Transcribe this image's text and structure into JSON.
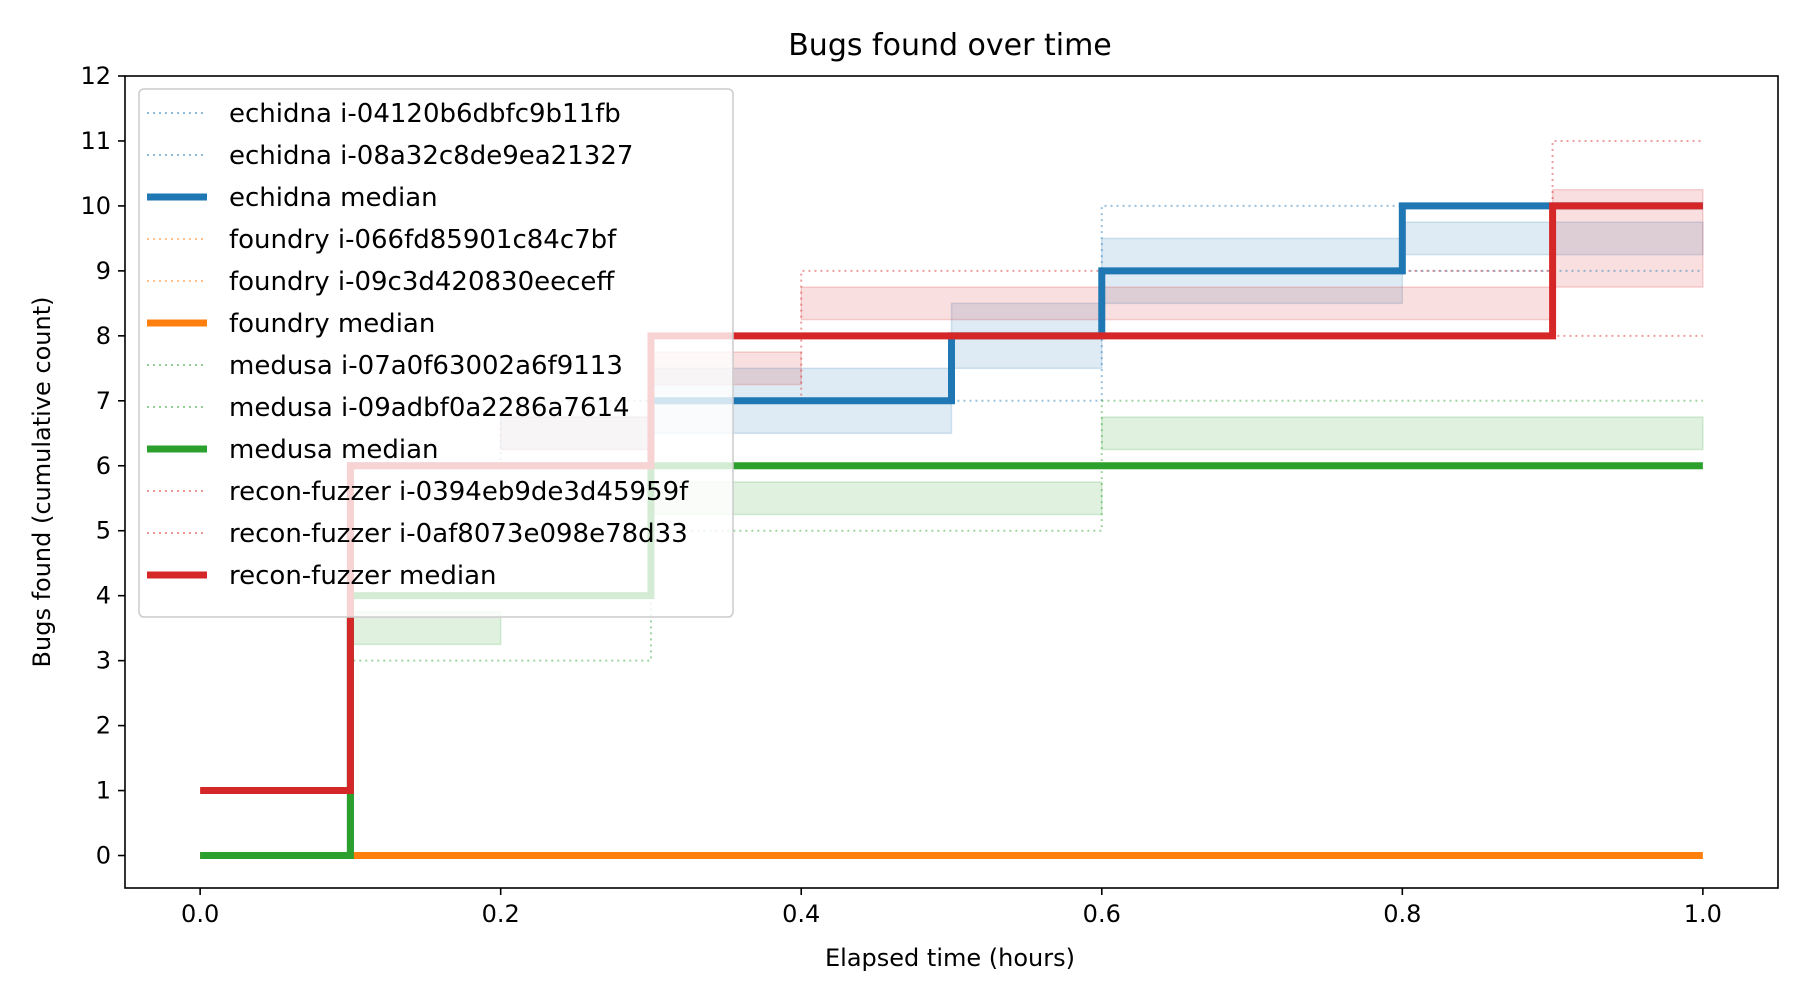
{
  "chart_data": {
    "type": "line",
    "step": "post",
    "title": "Bugs found over time",
    "xlabel": "Elapsed time (hours)",
    "ylabel": "Bugs found (cumulative count)",
    "xlim": [
      -0.05,
      1.05
    ],
    "ylim": [
      -0.5,
      12
    ],
    "xticks": [
      0.0,
      0.2,
      0.4,
      0.6,
      0.8,
      1.0
    ],
    "xtick_labels": [
      "0.0",
      "0.2",
      "0.4",
      "0.6",
      "0.8",
      "1.0"
    ],
    "yticks": [
      0,
      1,
      2,
      3,
      4,
      5,
      6,
      7,
      8,
      9,
      10,
      11,
      12
    ],
    "ytick_labels": [
      "0",
      "1",
      "2",
      "3",
      "4",
      "5",
      "6",
      "7",
      "8",
      "9",
      "10",
      "11",
      "12"
    ],
    "grid": false,
    "legend_position": "upper-left",
    "x": [
      0.0,
      0.1,
      0.2,
      0.3,
      0.4,
      0.5,
      0.6,
      0.7,
      0.8,
      0.9,
      1.0
    ],
    "series": [
      {
        "name": "echidna i-04120b6dbfc9b11fb",
        "style": "dotted",
        "color": "#1f77b4",
        "values": [
          0,
          6,
          7,
          7,
          7,
          8,
          10,
          10,
          10,
          10,
          10
        ]
      },
      {
        "name": "echidna i-08a32c8de9ea21327",
        "style": "dotted",
        "color": "#1f77b4",
        "values": [
          0,
          6,
          6,
          7,
          7,
          7,
          9,
          9,
          9,
          9,
          9
        ]
      },
      {
        "name": "echidna median",
        "style": "solid",
        "color": "#1f77b4",
        "values": [
          0,
          6,
          6.5,
          7,
          7,
          7.5,
          9,
          9,
          9.5,
          9.5,
          9.5
        ]
      },
      {
        "name": "foundry i-066fd85901c84c7bf",
        "style": "dotted",
        "color": "#ff7f0e",
        "values": [
          0,
          0,
          0,
          0,
          0,
          0,
          0,
          0,
          0,
          0,
          0
        ]
      },
      {
        "name": "foundry i-09c3d420830eeceff",
        "style": "dotted",
        "color": "#ff7f0e",
        "values": [
          0,
          0,
          0,
          0,
          0,
          0,
          0,
          0,
          0,
          0,
          0
        ]
      },
      {
        "name": "foundry median",
        "style": "solid",
        "color": "#ff7f0e",
        "values": [
          0,
          0,
          0,
          0,
          0,
          0,
          0,
          0,
          0,
          0,
          0
        ]
      },
      {
        "name": "medusa i-07a0f63002a6f9113",
        "style": "dotted",
        "color": "#2ca02c",
        "values": [
          0,
          4,
          4,
          6,
          6,
          6,
          7,
          7,
          7,
          7,
          7
        ]
      },
      {
        "name": "medusa i-09adbf0a2286a7614",
        "style": "dotted",
        "color": "#2ca02c",
        "values": [
          0,
          3,
          3,
          5,
          5,
          5,
          6,
          6,
          6,
          6,
          6
        ]
      },
      {
        "name": "medusa median",
        "style": "solid",
        "color": "#2ca02c",
        "values": [
          0,
          3.5,
          3.5,
          5.5,
          5.5,
          5.5,
          6.5,
          6.5,
          6.5,
          6.5,
          6.5
        ]
      },
      {
        "name": "recon-fuzzer i-0394eb9de3d45959f",
        "style": "dotted",
        "color": "#d62728",
        "values": [
          1,
          6,
          6,
          8,
          9,
          9,
          9,
          9,
          9,
          11,
          11
        ]
      },
      {
        "name": "recon-fuzzer i-0af8073e098e78d33",
        "style": "dotted",
        "color": "#d62728",
        "values": [
          1,
          6,
          6,
          7,
          8,
          8,
          8,
          8,
          8,
          8,
          8
        ]
      },
      {
        "name": "recon-fuzzer median",
        "style": "solid",
        "color": "#d62728",
        "values": [
          1,
          6,
          6,
          7.5,
          8.5,
          8.5,
          8.5,
          8.5,
          8.5,
          9.5,
          9.5
        ]
      }
    ],
    "bands": [
      {
        "series": "echidna",
        "color": "#1f77b4",
        "segments": [
          [
            0.2,
            0.3,
            6.25,
            6.75
          ],
          [
            0.3,
            0.5,
            6.5,
            7.5
          ],
          [
            0.5,
            0.6,
            7.5,
            8.5
          ],
          [
            0.6,
            0.8,
            8.5,
            9.5
          ],
          [
            0.8,
            1.0,
            9.25,
            9.75
          ]
        ]
      },
      {
        "series": "medusa",
        "color": "#2ca02c",
        "segments": [
          [
            0.1,
            0.2,
            3.25,
            3.75
          ],
          [
            0.3,
            0.6,
            5.25,
            5.75
          ],
          [
            0.6,
            1.0,
            6.25,
            6.75
          ]
        ]
      },
      {
        "series": "recon-fuzzer",
        "color": "#d62728",
        "segments": [
          [
            0.2,
            0.3,
            6.25,
            6.75
          ],
          [
            0.3,
            0.4,
            7.25,
            7.75
          ],
          [
            0.4,
            0.9,
            8.25,
            8.75
          ],
          [
            0.9,
            1.0,
            8.75,
            10.25
          ]
        ]
      }
    ],
    "median_lines": [
      {
        "name": "echidna median",
        "color": "#1f77b4",
        "x": [
          0.0,
          0.1,
          0.3,
          0.5,
          0.6,
          0.8,
          0.9,
          1.0
        ],
        "y": [
          0,
          6,
          7,
          8,
          9,
          10,
          10,
          10
        ]
      },
      {
        "name": "foundry median",
        "color": "#ff7f0e",
        "x": [
          0.0,
          1.0
        ],
        "y": [
          0,
          0
        ]
      },
      {
        "name": "medusa median",
        "color": "#2ca02c",
        "x": [
          0.0,
          0.1,
          0.3,
          0.6,
          1.0
        ],
        "y": [
          0,
          4,
          6,
          6,
          6
        ]
      },
      {
        "name": "recon-fuzzer median",
        "color": "#d62728",
        "x": [
          0.0,
          0.1,
          0.3,
          0.4,
          0.9,
          1.0
        ],
        "y": [
          1,
          6,
          8,
          8,
          10,
          10
        ]
      }
    ]
  }
}
